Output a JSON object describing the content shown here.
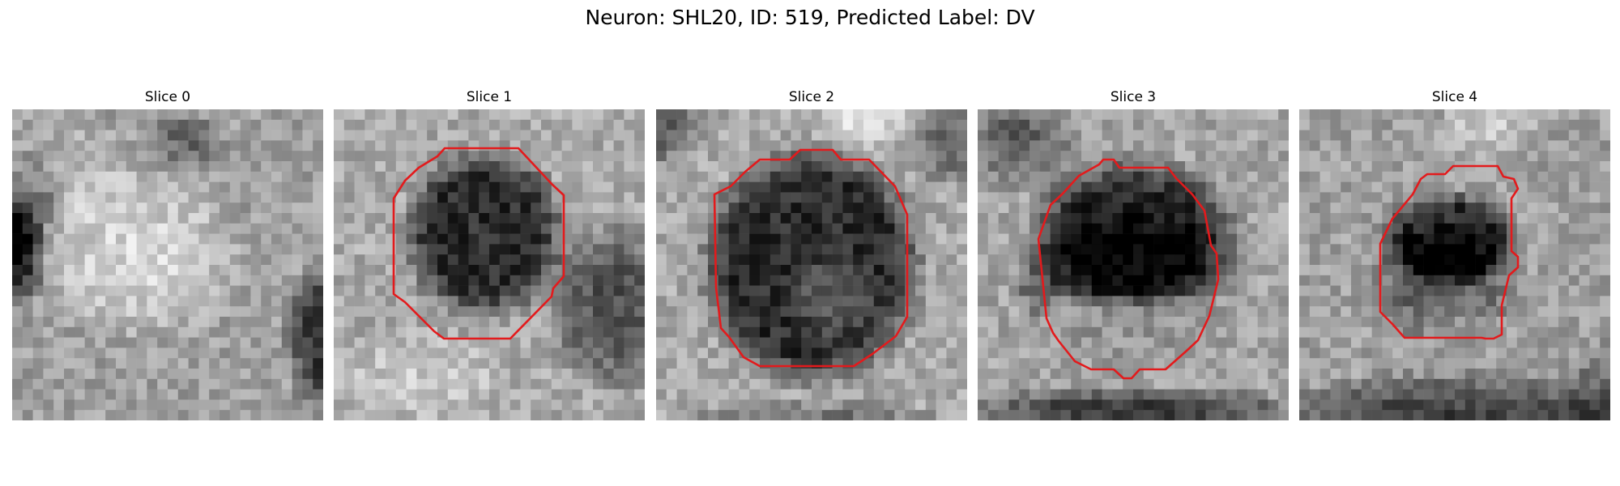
{
  "figure": {
    "title": "Neuron: SHL20, ID: 519, Predicted Label: DV"
  },
  "slices": [
    {
      "title": "Slice 0",
      "has_contour": false
    },
    {
      "title": "Slice 1",
      "has_contour": true
    },
    {
      "title": "Slice 2",
      "has_contour": true
    },
    {
      "title": "Slice 3",
      "has_contour": true
    },
    {
      "title": "Slice 4",
      "has_contour": true
    }
  ],
  "colors": {
    "contour": "#e31a1c",
    "background": "#ffffff"
  },
  "colormap": "gray"
}
